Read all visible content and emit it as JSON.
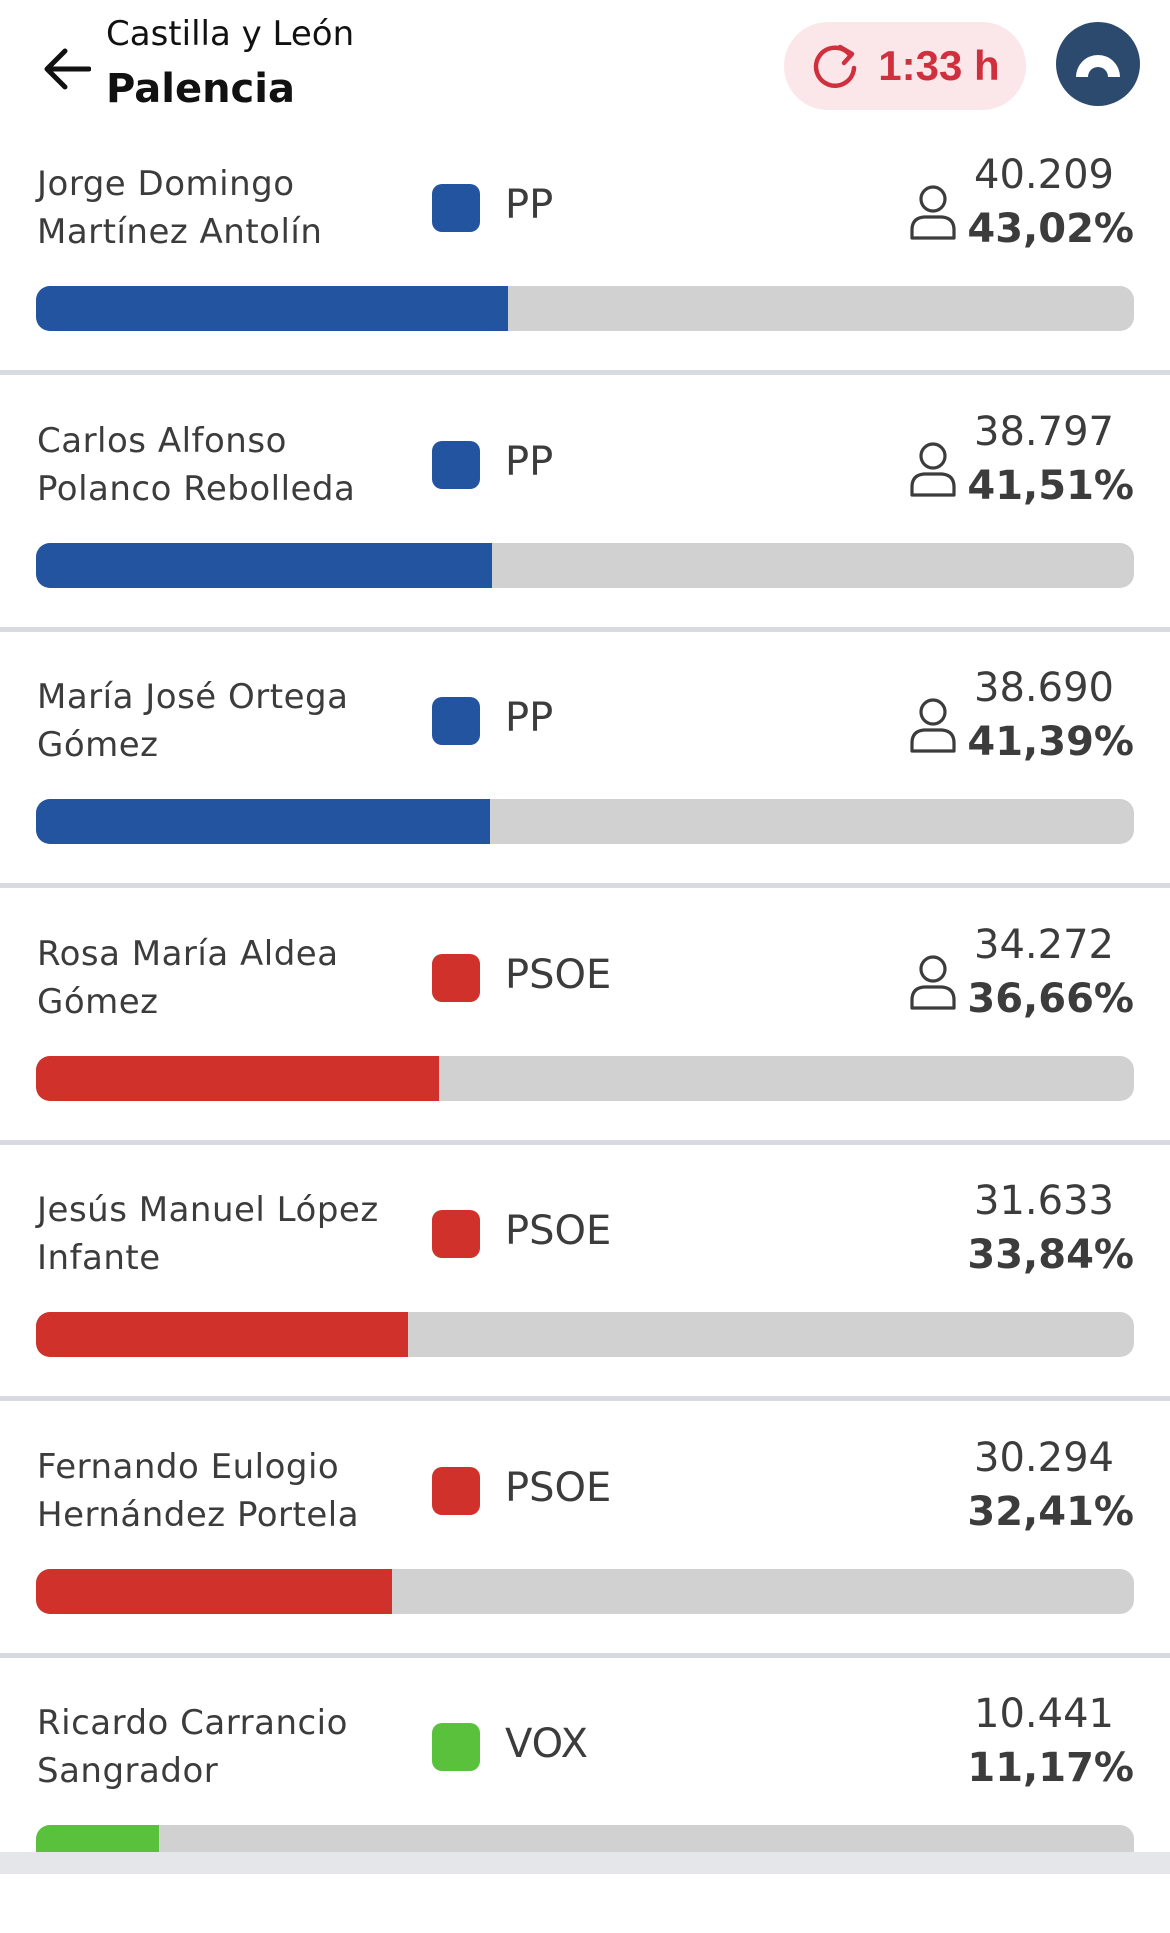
{
  "header": {
    "region": "Castilla y León",
    "province": "Palencia",
    "timer": "1:33 h",
    "colors": {
      "timer_bg": "#fbe6e9",
      "timer_text": "#d0303d",
      "avatar_bg": "#2c4a6d"
    }
  },
  "candidates": [
    {
      "name": "Jorge Domingo Martínez Antolín",
      "party": "PP",
      "color": "#23549f",
      "votes": "40.209",
      "percent": "43,02%",
      "share": 0.4302,
      "elected": true
    },
    {
      "name": "Carlos Alfonso Polanco Rebolleda",
      "party": "PP",
      "color": "#23549f",
      "votes": "38.797",
      "percent": "41,51%",
      "share": 0.4151,
      "elected": true
    },
    {
      "name": "María José Ortega Gómez",
      "party": "PP",
      "color": "#23549f",
      "votes": "38.690",
      "percent": "41,39%",
      "share": 0.4139,
      "elected": true
    },
    {
      "name": "Rosa María Aldea Gómez",
      "party": "PSOE",
      "color": "#d0312a",
      "votes": "34.272",
      "percent": "36,66%",
      "share": 0.3666,
      "elected": true
    },
    {
      "name": "Jesús Manuel López Infante",
      "party": "PSOE",
      "color": "#d0312a",
      "votes": "31.633",
      "percent": "33,84%",
      "share": 0.3384,
      "elected": false
    },
    {
      "name": "Fernando Eulogio Hernández Portela",
      "party": "PSOE",
      "color": "#d0312a",
      "votes": "30.294",
      "percent": "32,41%",
      "share": 0.3241,
      "elected": false
    },
    {
      "name": "Ricardo Carrancio Sangrador",
      "party": "VOX",
      "color": "#5ac13c",
      "votes": "10.441",
      "percent": "11,17%",
      "share": 0.1117,
      "elected": false
    }
  ]
}
